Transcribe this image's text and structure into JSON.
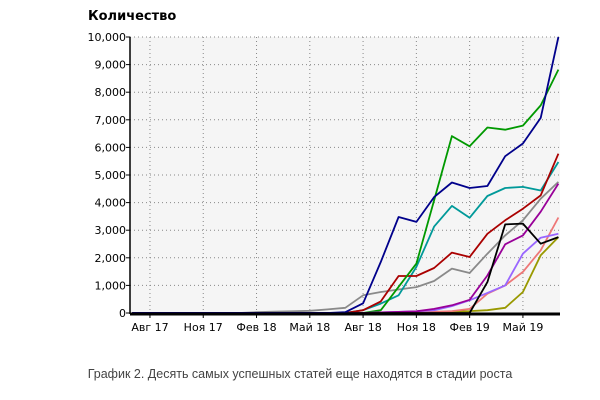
{
  "chart_data": {
    "type": "line",
    "title": "",
    "ylabel": "Количество",
    "xlabel": "",
    "caption": "График 2. Десять самых успешных статей еще находятся в стадии роста",
    "ylim": [
      0,
      10000
    ],
    "yticks": [
      0,
      1000,
      2000,
      3000,
      4000,
      5000,
      6000,
      7000,
      8000,
      9000,
      10000
    ],
    "ytick_labels": [
      "0",
      "1,000",
      "2,000",
      "3,000",
      "4,000",
      "5,000",
      "6,000",
      "7,000",
      "8,000",
      "9,000",
      "10,000"
    ],
    "x": [
      "Июл 17",
      "Авг 17",
      "Сен 17",
      "Окт 17",
      "Ноя 17",
      "Дек 17",
      "Янв 18",
      "Фев 18",
      "Мар 18",
      "Апр 18",
      "Май 18",
      "Июн 18",
      "Июл 18",
      "Авг 18",
      "Сен 18",
      "Окт 18",
      "Ноя 18",
      "Дек 18",
      "Янв 19",
      "Фев 19",
      "Мар 19",
      "Апр 19",
      "Май 19",
      "Июн 19",
      "Июл 19"
    ],
    "xtick_labels": [
      "Авг 17",
      "Ноя 17",
      "Фев 18",
      "Май 18",
      "Авг 18",
      "Ноя 18",
      "Фев 19",
      "Май 19"
    ],
    "xtick_index": [
      1,
      4,
      7,
      10,
      13,
      16,
      19,
      22
    ],
    "grid": true,
    "series": [
      {
        "color": "#8a8a8a",
        "values": [
          0,
          0,
          0,
          0,
          0,
          0,
          0,
          30,
          50,
          60,
          80,
          130,
          190,
          640,
          760,
          850,
          940,
          1160,
          1610,
          1450,
          2150,
          2810,
          3360,
          4140,
          4750
        ]
      },
      {
        "color": "#009999",
        "values": [
          0,
          0,
          0,
          0,
          0,
          0,
          0,
          0,
          0,
          0,
          0,
          0,
          0,
          100,
          340,
          640,
          1670,
          3130,
          3880,
          3450,
          4240,
          4530,
          4570,
          4440,
          5470
        ]
      },
      {
        "color": "#aa0000",
        "values": [
          0,
          0,
          0,
          0,
          0,
          0,
          0,
          0,
          0,
          0,
          0,
          0,
          0,
          100,
          420,
          1340,
          1340,
          1630,
          2190,
          2030,
          2870,
          3360,
          3780,
          4260,
          5770
        ]
      },
      {
        "color": "#009900",
        "values": [
          0,
          0,
          0,
          0,
          0,
          0,
          0,
          0,
          0,
          0,
          0,
          0,
          0,
          0,
          100,
          950,
          1790,
          4080,
          6410,
          6040,
          6720,
          6640,
          6790,
          7520,
          8820
        ]
      },
      {
        "color": "#999900",
        "values": [
          0,
          0,
          0,
          0,
          0,
          0,
          0,
          0,
          0,
          0,
          0,
          0,
          0,
          0,
          0,
          0,
          30,
          40,
          50,
          70,
          100,
          190,
          760,
          2090,
          2750
        ]
      },
      {
        "color": "#ee7777",
        "values": [
          0,
          0,
          0,
          0,
          0,
          0,
          0,
          0,
          0,
          0,
          0,
          0,
          0,
          0,
          0,
          0,
          20,
          40,
          70,
          150,
          700,
          1000,
          1490,
          2270,
          3460
        ]
      },
      {
        "color": "#9966ff",
        "values": [
          0,
          0,
          0,
          0,
          0,
          0,
          0,
          0,
          0,
          0,
          0,
          0,
          0,
          0,
          20,
          40,
          60,
          100,
          250,
          460,
          730,
          1000,
          2150,
          2730,
          2870
        ]
      },
      {
        "color": "#990099",
        "values": [
          0,
          0,
          0,
          0,
          0,
          0,
          0,
          0,
          0,
          0,
          0,
          0,
          0,
          0,
          20,
          40,
          60,
          150,
          280,
          480,
          1360,
          2490,
          2810,
          3670,
          4690
        ]
      },
      {
        "color": "#000000",
        "values": [
          0,
          0,
          0,
          0,
          0,
          0,
          0,
          0,
          0,
          0,
          0,
          0,
          0,
          0,
          0,
          0,
          0,
          0,
          0,
          0,
          1120,
          3210,
          3240,
          2510,
          2750
        ]
      },
      {
        "color": "#00008b",
        "values": [
          0,
          0,
          0,
          0,
          0,
          0,
          0,
          0,
          0,
          0,
          0,
          0,
          30,
          350,
          1850,
          3480,
          3300,
          4200,
          4730,
          4530,
          4600,
          5680,
          6140,
          7070,
          10000
        ]
      }
    ]
  }
}
